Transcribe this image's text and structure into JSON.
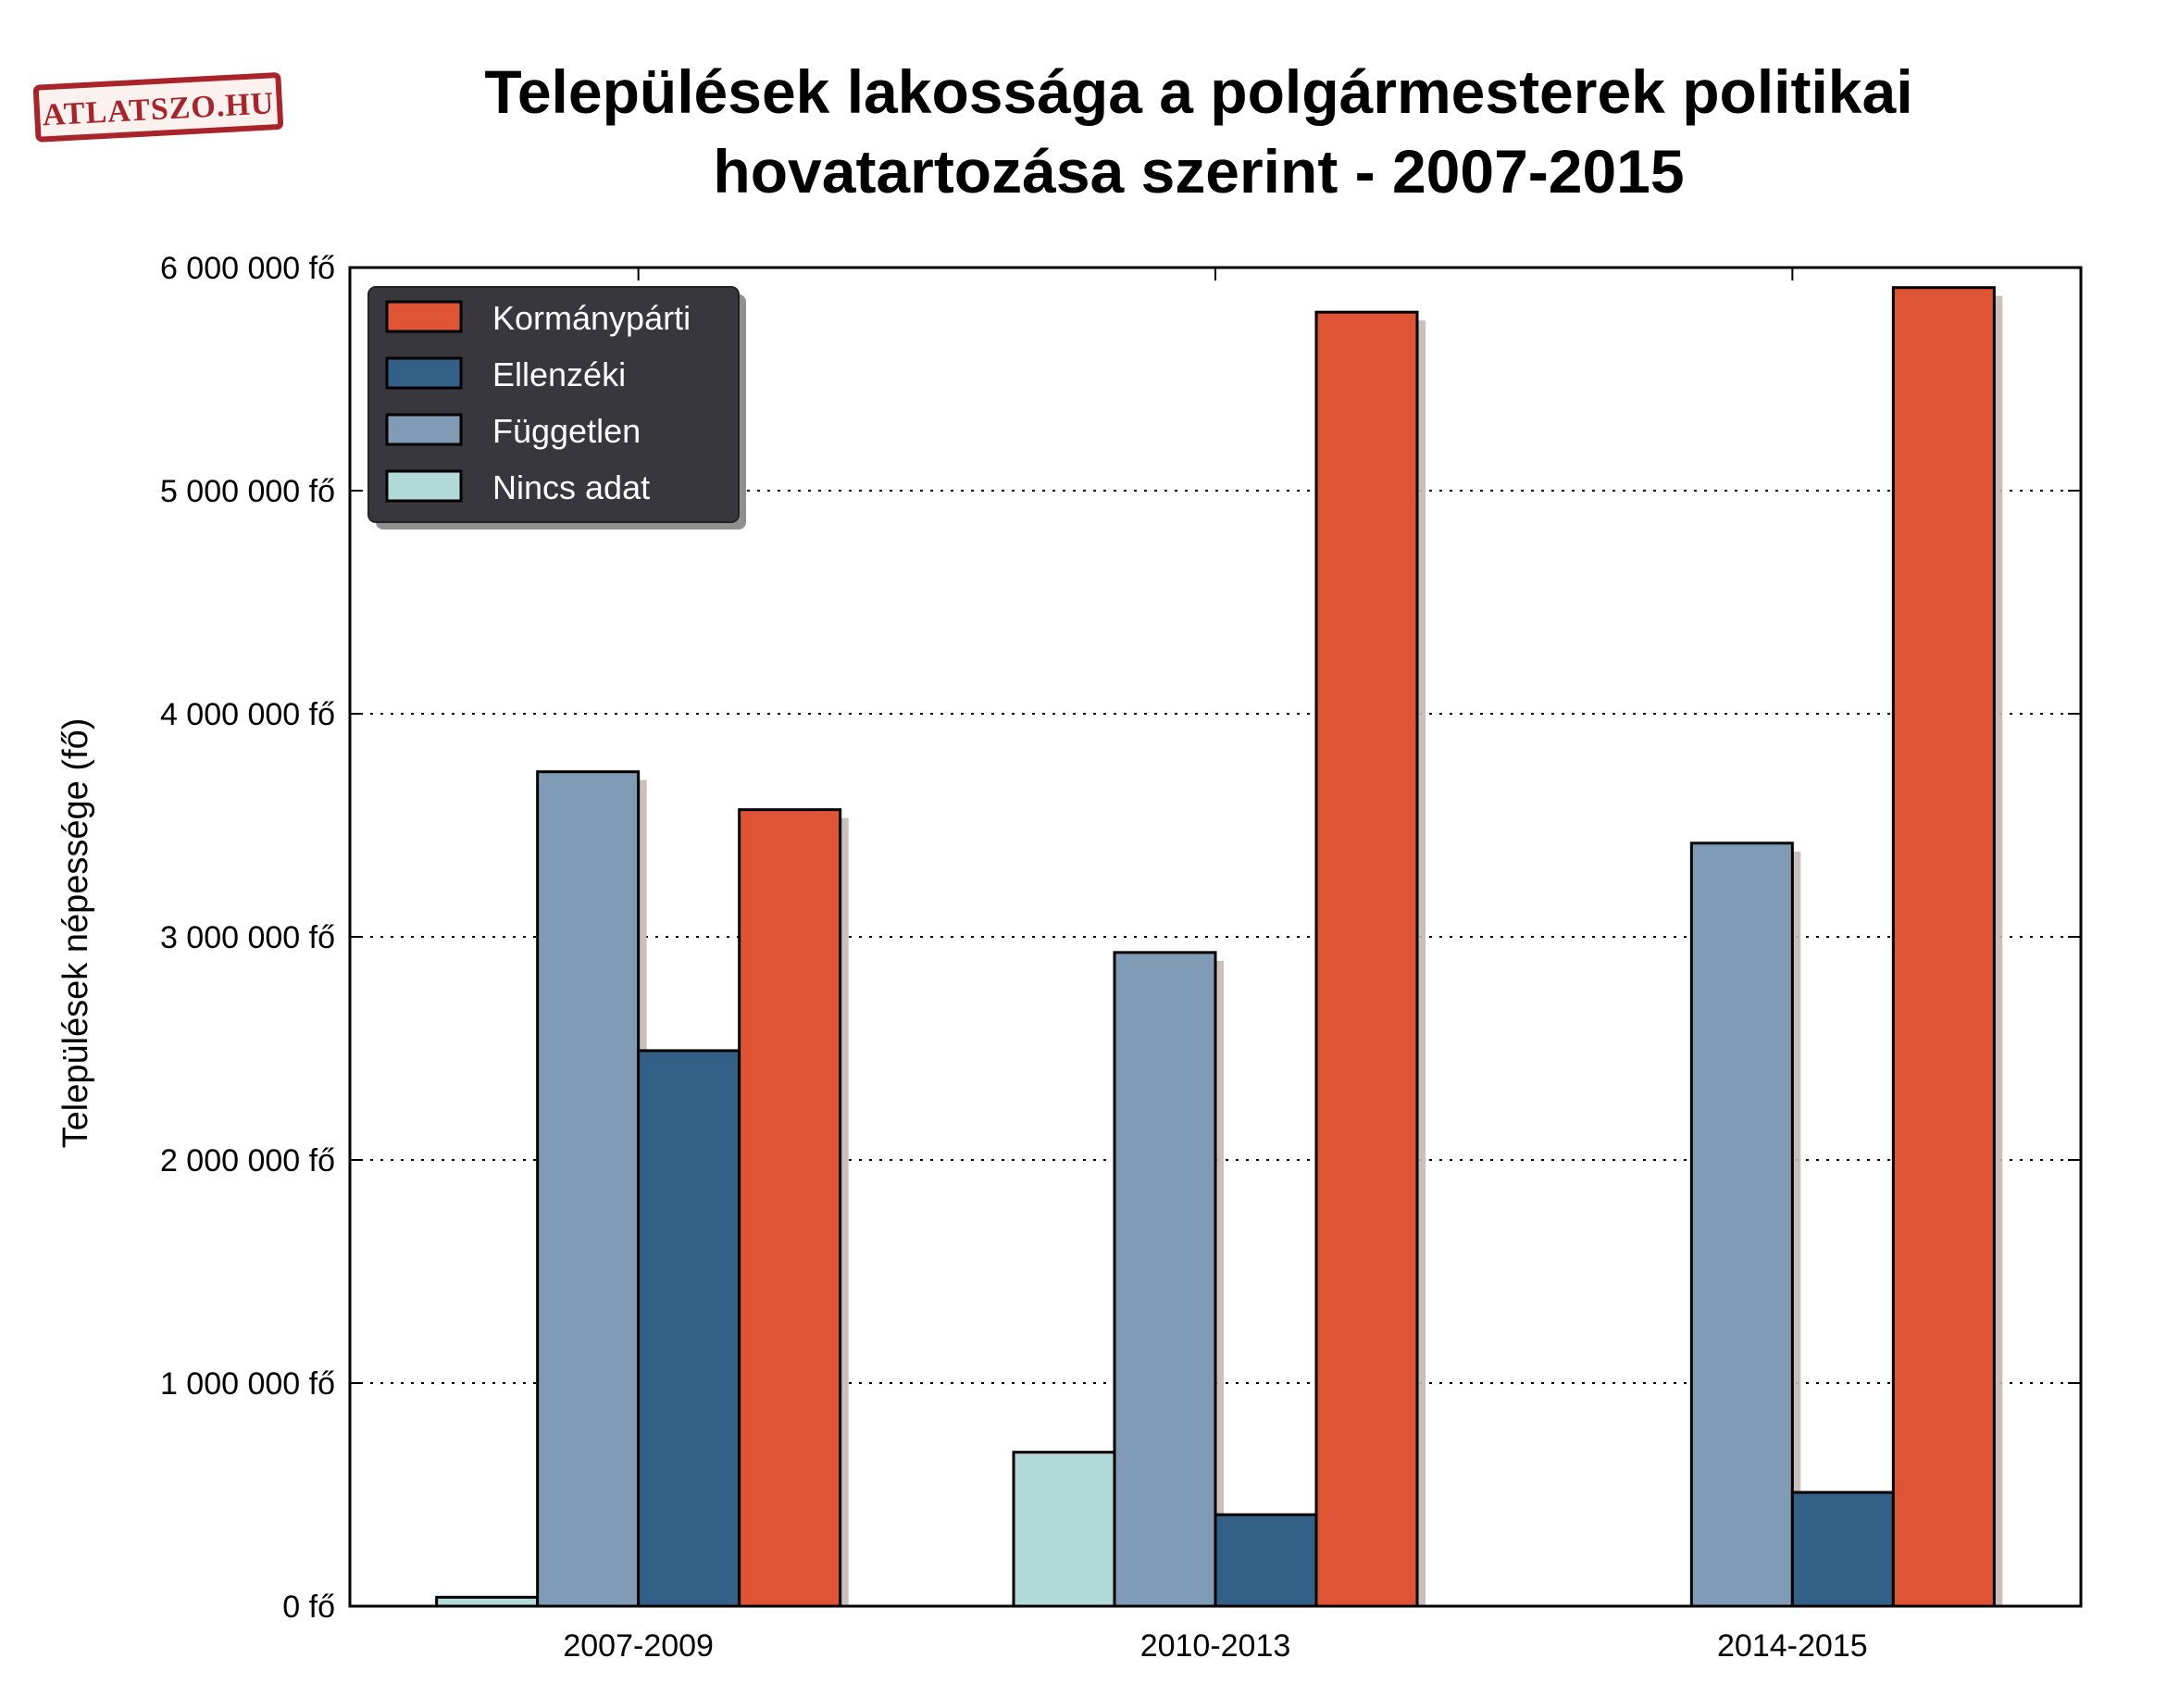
{
  "logo": {
    "text": "ATLATSZO.HU",
    "color": "#a8232a"
  },
  "chart_data": {
    "type": "bar",
    "title": "Települések lakossága a polgármesterek politikai hovatartozása szerint - 2007-2015",
    "title_lines": [
      "Települések lakossága a polgármesterek politikai",
      "hovatartozása szerint - 2007-2015"
    ],
    "ylabel": "Települések népessége (fő)",
    "xlabel": "",
    "categories": [
      "2007-2009",
      "2010-2013",
      "2014-2015"
    ],
    "ylim": [
      0,
      6000000
    ],
    "yticks": [
      0,
      1000000,
      2000000,
      3000000,
      4000000,
      5000000,
      6000000
    ],
    "ytick_labels": [
      "0 fő",
      "1 000 000 fő",
      "2 000 000 fő",
      "3 000 000 fő",
      "4 000 000 fő",
      "5 000 000 fő",
      "6 000 000 fő"
    ],
    "grid": "horizontal dotted",
    "legend_position": "top-left",
    "bar_order": [
      "Nincs adat",
      "Független",
      "Ellenzéki",
      "Kormánypárti"
    ],
    "series": [
      {
        "name": "Kormánypárti",
        "color": "#e05436",
        "values": [
          3570000,
          5800000,
          5910000
        ]
      },
      {
        "name": "Ellenzéki",
        "color": "#336086",
        "values": [
          2490000,
          410000,
          510000
        ]
      },
      {
        "name": "Független",
        "color": "#7f9bb5",
        "values": [
          3740000,
          2930000,
          3420000
        ]
      },
      {
        "name": "Nincs adat",
        "color": "#b1d9d7",
        "values": [
          40000,
          690000,
          0
        ]
      }
    ]
  }
}
